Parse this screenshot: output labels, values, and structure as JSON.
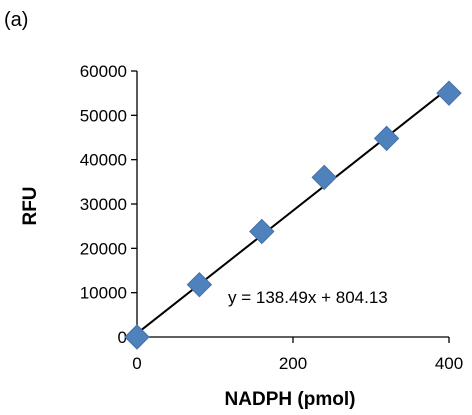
{
  "panel_label": "(a)",
  "chart_data": {
    "type": "scatter",
    "xlabel": "NADPH (pmol)",
    "ylabel": "RFU",
    "xlim": [
      0,
      400
    ],
    "ylim": [
      0,
      60000
    ],
    "xticks": [
      0,
      200,
      400
    ],
    "yticks": [
      0,
      10000,
      20000,
      30000,
      40000,
      50000,
      60000
    ],
    "grid": false,
    "series": [
      {
        "x": [
          0,
          80,
          160,
          240,
          320,
          400
        ],
        "y": [
          0,
          11800,
          23800,
          36000,
          44800,
          55000
        ],
        "marker": "diamond",
        "color": "#4f81bd"
      }
    ],
    "trendline": {
      "equation": "y = 138.49x + 804.13",
      "slope": 138.49,
      "intercept": 804.13,
      "color": "#000000"
    }
  }
}
